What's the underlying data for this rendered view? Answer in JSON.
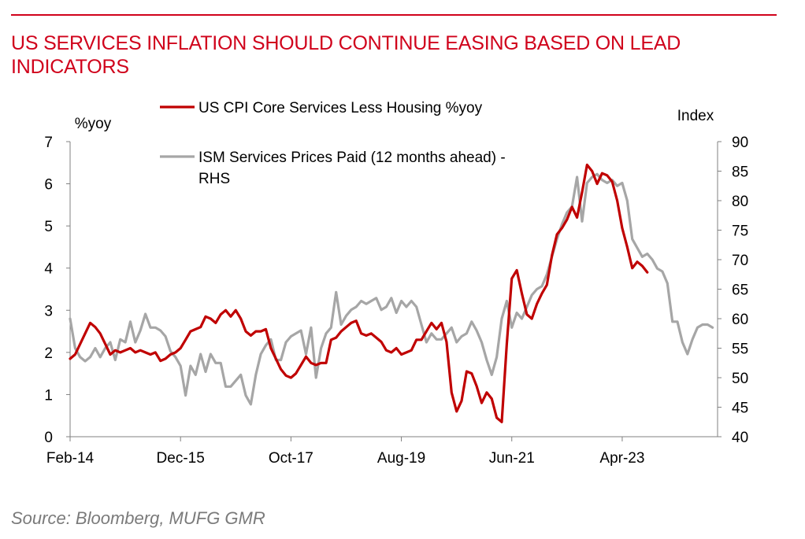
{
  "header": {
    "title": "US SERVICES INFLATION SHOULD CONTINUE EASING BASED ON LEAD INDICATORS"
  },
  "footer": {
    "source": "Source: Bloomberg, MUFG GMR"
  },
  "colors": {
    "accent": "#d0021b",
    "cpi_line": "#c00000",
    "ism_line": "#a6a6a6",
    "axis": "#808080"
  },
  "chart_data": {
    "type": "line",
    "title": "US SERVICES INFLATION SHOULD CONTINUE EASING BASED ON LEAD INDICATORS",
    "x_tick_labels": [
      "Feb-14",
      "Dec-15",
      "Oct-17",
      "Aug-19",
      "Jun-21",
      "Apr-23"
    ],
    "x_ticks": [
      "2014-02",
      "2015-12",
      "2017-10",
      "2019-08",
      "2021-06",
      "2023-04"
    ],
    "xlim": [
      "2014-02",
      "2024-11"
    ],
    "left_axis": {
      "label": "%yoy",
      "ylim": [
        0,
        7
      ],
      "ticks": [
        "0",
        "1",
        "2",
        "3",
        "4",
        "5",
        "6",
        "7"
      ]
    },
    "right_axis": {
      "label": "Index",
      "ylim": [
        40,
        90
      ],
      "ticks": [
        "40",
        "45",
        "50",
        "55",
        "60",
        "65",
        "70",
        "75",
        "80",
        "85",
        "90"
      ]
    },
    "legend": {
      "placement": "top-left",
      "entries": [
        "US CPI Core Services Less Housing %yoy",
        "ISM Services Prices Paid (12 months ahead) - RHS"
      ]
    },
    "grid": false,
    "series": [
      {
        "name": "US CPI Core Services Less Housing %yoy",
        "axis": "left",
        "color": "#c00000",
        "points": [
          [
            "2014-02",
            1.85
          ],
          [
            "2014-03",
            1.95
          ],
          [
            "2014-05",
            2.45
          ],
          [
            "2014-06",
            2.7
          ],
          [
            "2014-07",
            2.6
          ],
          [
            "2014-08",
            2.45
          ],
          [
            "2014-09",
            2.2
          ],
          [
            "2014-10",
            1.95
          ],
          [
            "2014-11",
            2.05
          ],
          [
            "2014-12",
            2.0
          ],
          [
            "2015-01",
            2.05
          ],
          [
            "2015-02",
            2.1
          ],
          [
            "2015-03",
            2.0
          ],
          [
            "2015-04",
            2.05
          ],
          [
            "2015-05",
            2.0
          ],
          [
            "2015-06",
            1.95
          ],
          [
            "2015-07",
            2.0
          ],
          [
            "2015-08",
            1.8
          ],
          [
            "2015-09",
            1.85
          ],
          [
            "2015-10",
            1.95
          ],
          [
            "2015-11",
            2.0
          ],
          [
            "2015-12",
            2.1
          ],
          [
            "2016-01",
            2.3
          ],
          [
            "2016-02",
            2.5
          ],
          [
            "2016-03",
            2.55
          ],
          [
            "2016-04",
            2.6
          ],
          [
            "2016-05",
            2.85
          ],
          [
            "2016-06",
            2.8
          ],
          [
            "2016-07",
            2.7
          ],
          [
            "2016-08",
            2.9
          ],
          [
            "2016-09",
            3.0
          ],
          [
            "2016-10",
            2.85
          ],
          [
            "2016-11",
            3.0
          ],
          [
            "2016-12",
            2.8
          ],
          [
            "2017-01",
            2.5
          ],
          [
            "2017-02",
            2.4
          ],
          [
            "2017-03",
            2.5
          ],
          [
            "2017-04",
            2.5
          ],
          [
            "2017-05",
            2.55
          ],
          [
            "2017-06",
            2.1
          ],
          [
            "2017-07",
            1.85
          ],
          [
            "2017-08",
            1.6
          ],
          [
            "2017-09",
            1.45
          ],
          [
            "2017-10",
            1.4
          ],
          [
            "2017-11",
            1.5
          ],
          [
            "2017-12",
            1.7
          ],
          [
            "2018-01",
            1.9
          ],
          [
            "2018-02",
            1.75
          ],
          [
            "2018-03",
            1.7
          ],
          [
            "2018-04",
            1.75
          ],
          [
            "2018-05",
            1.75
          ],
          [
            "2018-06",
            2.3
          ],
          [
            "2018-07",
            2.35
          ],
          [
            "2018-08",
            2.5
          ],
          [
            "2018-09",
            2.6
          ],
          [
            "2018-10",
            2.7
          ],
          [
            "2018-11",
            2.75
          ],
          [
            "2018-12",
            2.45
          ],
          [
            "2019-01",
            2.4
          ],
          [
            "2019-02",
            2.45
          ],
          [
            "2019-03",
            2.35
          ],
          [
            "2019-04",
            2.25
          ],
          [
            "2019-05",
            2.05
          ],
          [
            "2019-06",
            2.0
          ],
          [
            "2019-07",
            2.1
          ],
          [
            "2019-08",
            1.95
          ],
          [
            "2019-09",
            2.0
          ],
          [
            "2019-10",
            2.05
          ],
          [
            "2019-11",
            2.3
          ],
          [
            "2019-12",
            2.3
          ],
          [
            "2020-01",
            2.5
          ],
          [
            "2020-02",
            2.7
          ],
          [
            "2020-03",
            2.55
          ],
          [
            "2020-04",
            2.7
          ],
          [
            "2020-05",
            2.25
          ],
          [
            "2020-06",
            1.05
          ],
          [
            "2020-07",
            0.6
          ],
          [
            "2020-08",
            0.85
          ],
          [
            "2020-09",
            1.55
          ],
          [
            "2020-10",
            1.5
          ],
          [
            "2020-11",
            1.2
          ],
          [
            "2020-12",
            0.8
          ],
          [
            "2021-01",
            1.05
          ],
          [
            "2021-02",
            0.9
          ],
          [
            "2021-03",
            0.45
          ],
          [
            "2021-04",
            0.35
          ],
          [
            "2021-05",
            2.2
          ],
          [
            "2021-06",
            3.75
          ],
          [
            "2021-07",
            3.95
          ],
          [
            "2021-08",
            3.4
          ],
          [
            "2021-09",
            2.9
          ],
          [
            "2021-10",
            2.8
          ],
          [
            "2021-11",
            3.15
          ],
          [
            "2021-12",
            3.4
          ],
          [
            "2022-01",
            3.6
          ],
          [
            "2022-02",
            4.3
          ],
          [
            "2022-03",
            4.8
          ],
          [
            "2022-04",
            4.95
          ],
          [
            "2022-05",
            5.15
          ],
          [
            "2022-06",
            5.45
          ],
          [
            "2022-07",
            5.2
          ],
          [
            "2022-08",
            5.8
          ],
          [
            "2022-09",
            6.45
          ],
          [
            "2022-10",
            6.3
          ],
          [
            "2022-11",
            6.0
          ],
          [
            "2022-12",
            6.25
          ],
          [
            "2023-01",
            6.2
          ],
          [
            "2023-02",
            6.05
          ],
          [
            "2023-03",
            5.6
          ],
          [
            "2023-04",
            4.95
          ],
          [
            "2023-05",
            4.5
          ],
          [
            "2023-06",
            4.0
          ],
          [
            "2023-07",
            4.15
          ],
          [
            "2023-08",
            4.05
          ],
          [
            "2023-09",
            3.9
          ]
        ]
      },
      {
        "name": "ISM Services Prices Paid (12 months ahead) - RHS",
        "axis": "right",
        "color": "#a6a6a6",
        "points": [
          [
            "2014-02",
            60.0
          ],
          [
            "2014-03",
            55.0
          ],
          [
            "2014-04",
            53.5
          ],
          [
            "2014-05",
            52.8
          ],
          [
            "2014-06",
            53.5
          ],
          [
            "2014-07",
            55.0
          ],
          [
            "2014-08",
            53.5
          ],
          [
            "2014-09",
            55.0
          ],
          [
            "2014-10",
            56.0
          ],
          [
            "2014-11",
            53.0
          ],
          [
            "2014-12",
            56.5
          ],
          [
            "2015-01",
            56.0
          ],
          [
            "2015-02",
            59.5
          ],
          [
            "2015-03",
            56.0
          ],
          [
            "2015-04",
            58.0
          ],
          [
            "2015-05",
            60.8
          ],
          [
            "2015-06",
            58.5
          ],
          [
            "2015-07",
            58.5
          ],
          [
            "2015-08",
            58.0
          ],
          [
            "2015-09",
            57.0
          ],
          [
            "2015-10",
            54.5
          ],
          [
            "2015-11",
            53.5
          ],
          [
            "2015-12",
            52.0
          ],
          [
            "2016-01",
            47.0
          ],
          [
            "2016-02",
            52.0
          ],
          [
            "2016-03",
            50.5
          ],
          [
            "2016-04",
            54.0
          ],
          [
            "2016-05",
            51.0
          ],
          [
            "2016-06",
            54.0
          ],
          [
            "2016-07",
            52.5
          ],
          [
            "2016-08",
            52.5
          ],
          [
            "2016-09",
            48.5
          ],
          [
            "2016-10",
            48.5
          ],
          [
            "2016-11",
            49.5
          ],
          [
            "2016-12",
            50.5
          ],
          [
            "2017-01",
            47.0
          ],
          [
            "2017-02",
            45.5
          ],
          [
            "2017-03",
            50.5
          ],
          [
            "2017-04",
            54.0
          ],
          [
            "2017-05",
            55.5
          ],
          [
            "2017-06",
            56.5
          ],
          [
            "2017-07",
            53.0
          ],
          [
            "2017-08",
            53.0
          ],
          [
            "2017-09",
            56.0
          ],
          [
            "2017-10",
            57.0
          ],
          [
            "2017-11",
            57.5
          ],
          [
            "2017-12",
            58.0
          ],
          [
            "2018-01",
            54.0
          ],
          [
            "2018-02",
            58.5
          ],
          [
            "2018-03",
            50.0
          ],
          [
            "2018-04",
            55.0
          ],
          [
            "2018-05",
            57.5
          ],
          [
            "2018-06",
            58.5
          ],
          [
            "2018-07",
            64.5
          ],
          [
            "2018-08",
            59.0
          ],
          [
            "2018-09",
            60.5
          ],
          [
            "2018-10",
            61.5
          ],
          [
            "2018-11",
            62.0
          ],
          [
            "2018-12",
            63.0
          ],
          [
            "2019-01",
            62.5
          ],
          [
            "2019-02",
            63.0
          ],
          [
            "2019-03",
            63.5
          ],
          [
            "2019-04",
            61.5
          ],
          [
            "2019-05",
            62.0
          ],
          [
            "2019-06",
            63.5
          ],
          [
            "2019-07",
            61.0
          ],
          [
            "2019-08",
            63.0
          ],
          [
            "2019-09",
            62.0
          ],
          [
            "2019-10",
            63.0
          ],
          [
            "2019-11",
            62.0
          ],
          [
            "2019-12",
            59.0
          ],
          [
            "2020-01",
            56.0
          ],
          [
            "2020-02",
            57.5
          ],
          [
            "2020-03",
            56.5
          ],
          [
            "2020-04",
            56.5
          ],
          [
            "2020-05",
            57.5
          ],
          [
            "2020-06",
            58.5
          ],
          [
            "2020-07",
            56.0
          ],
          [
            "2020-08",
            57.0
          ],
          [
            "2020-09",
            57.5
          ],
          [
            "2020-10",
            59.5
          ],
          [
            "2020-11",
            58.0
          ],
          [
            "2020-12",
            56.0
          ],
          [
            "2021-01",
            53.0
          ],
          [
            "2021-02",
            50.5
          ],
          [
            "2021-03",
            53.5
          ],
          [
            "2021-04",
            60.0
          ],
          [
            "2021-05",
            63.0
          ],
          [
            "2021-06",
            58.5
          ],
          [
            "2021-07",
            61.0
          ],
          [
            "2021-08",
            60.0
          ],
          [
            "2021-09",
            62.0
          ],
          [
            "2021-10",
            64.0
          ],
          [
            "2021-11",
            65.0
          ],
          [
            "2021-12",
            65.5
          ],
          [
            "2022-01",
            67.5
          ],
          [
            "2022-02",
            70.5
          ],
          [
            "2022-03",
            73.5
          ],
          [
            "2022-04",
            76.0
          ],
          [
            "2022-05",
            78.0
          ],
          [
            "2022-06",
            79.0
          ],
          [
            "2022-07",
            84.0
          ],
          [
            "2022-08",
            76.5
          ],
          [
            "2022-09",
            83.0
          ],
          [
            "2022-10",
            84.0
          ],
          [
            "2022-11",
            84.5
          ],
          [
            "2022-12",
            83.5
          ],
          [
            "2023-01",
            83.0
          ],
          [
            "2023-02",
            83.5
          ],
          [
            "2023-03",
            82.5
          ],
          [
            "2023-04",
            83.0
          ],
          [
            "2023-05",
            80.0
          ],
          [
            "2023-06",
            73.5
          ],
          [
            "2023-07",
            72.0
          ],
          [
            "2023-08",
            70.5
          ],
          [
            "2023-09",
            71.0
          ],
          [
            "2023-10",
            70.0
          ],
          [
            "2023-11",
            68.5
          ],
          [
            "2023-12",
            68.0
          ],
          [
            "2024-01",
            66.0
          ],
          [
            "2024-02",
            59.5
          ],
          [
            "2024-03",
            59.5
          ],
          [
            "2024-04",
            56.0
          ],
          [
            "2024-05",
            54.0
          ],
          [
            "2024-06",
            56.5
          ],
          [
            "2024-07",
            58.5
          ],
          [
            "2024-08",
            59.0
          ],
          [
            "2024-09",
            59.0
          ],
          [
            "2024-10",
            58.5
          ]
        ]
      }
    ]
  }
}
